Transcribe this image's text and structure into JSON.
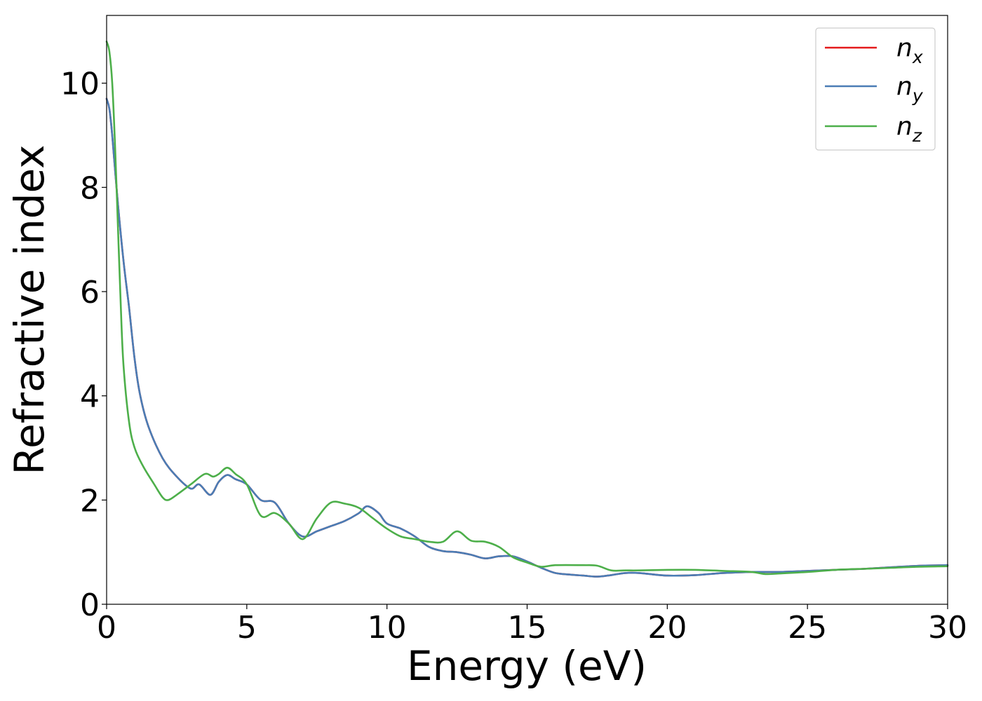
{
  "chart_data": {
    "type": "line",
    "xlabel": "Energy (eV)",
    "ylabel": "Refractive index",
    "xlim": [
      0,
      30
    ],
    "ylim": [
      0,
      11.3
    ],
    "xticks": [
      0,
      5,
      10,
      15,
      20,
      25,
      30
    ],
    "xtick_labels": [
      "0",
      "5",
      "10",
      "15",
      "20",
      "25",
      "30"
    ],
    "yticks": [
      0,
      2,
      4,
      6,
      8,
      10
    ],
    "ytick_labels": [
      "0",
      "2",
      "4",
      "6",
      "8",
      "10"
    ],
    "grid": false,
    "legend_position": "top-right",
    "series": [
      {
        "name": "n_x",
        "label_main": "n",
        "label_sub": "x",
        "color": "#e41a1c",
        "x": [
          0,
          0.1,
          0.2,
          0.4,
          0.6,
          0.8,
          1.0,
          1.2,
          1.5,
          2.0,
          2.5,
          3.0,
          3.3,
          3.7,
          4.0,
          4.3,
          4.6,
          5.0,
          5.5,
          6.0,
          6.5,
          7.0,
          7.5,
          8.0,
          8.5,
          9.0,
          9.3,
          9.7,
          10.0,
          10.5,
          11.0,
          11.5,
          12.0,
          12.5,
          13.0,
          13.5,
          14.0,
          14.5,
          15.0,
          15.5,
          16.0,
          16.5,
          17.0,
          17.5,
          18.0,
          18.5,
          19.0,
          20.0,
          21.0,
          22.0,
          23.0,
          24.0,
          25.0,
          26.0,
          27.0,
          28.0,
          29.0,
          30.0
        ],
        "y": [
          9.7,
          9.5,
          9.0,
          7.7,
          6.6,
          5.7,
          4.7,
          4.0,
          3.4,
          2.8,
          2.45,
          2.22,
          2.3,
          2.1,
          2.35,
          2.48,
          2.4,
          2.3,
          2.0,
          1.95,
          1.55,
          1.3,
          1.4,
          1.5,
          1.6,
          1.75,
          1.88,
          1.75,
          1.55,
          1.45,
          1.3,
          1.1,
          1.02,
          1.0,
          0.95,
          0.88,
          0.92,
          0.92,
          0.82,
          0.7,
          0.6,
          0.57,
          0.55,
          0.53,
          0.56,
          0.6,
          0.6,
          0.55,
          0.56,
          0.6,
          0.62,
          0.62,
          0.64,
          0.66,
          0.68,
          0.71,
          0.74,
          0.75
        ]
      },
      {
        "name": "n_y",
        "label_main": "n",
        "label_sub": "y",
        "color": "#4a7db5",
        "x": [
          0,
          0.1,
          0.2,
          0.4,
          0.6,
          0.8,
          1.0,
          1.2,
          1.5,
          2.0,
          2.5,
          3.0,
          3.3,
          3.7,
          4.0,
          4.3,
          4.6,
          5.0,
          5.5,
          6.0,
          6.5,
          7.0,
          7.5,
          8.0,
          8.5,
          9.0,
          9.3,
          9.7,
          10.0,
          10.5,
          11.0,
          11.5,
          12.0,
          12.5,
          13.0,
          13.5,
          14.0,
          14.5,
          15.0,
          15.5,
          16.0,
          16.5,
          17.0,
          17.5,
          18.0,
          18.5,
          19.0,
          20.0,
          21.0,
          22.0,
          23.0,
          24.0,
          25.0,
          26.0,
          27.0,
          28.0,
          29.0,
          30.0
        ],
        "y": [
          9.7,
          9.5,
          9.0,
          7.7,
          6.6,
          5.7,
          4.7,
          4.0,
          3.4,
          2.8,
          2.45,
          2.22,
          2.3,
          2.1,
          2.35,
          2.48,
          2.4,
          2.3,
          2.0,
          1.95,
          1.55,
          1.3,
          1.4,
          1.5,
          1.6,
          1.75,
          1.88,
          1.75,
          1.55,
          1.45,
          1.3,
          1.1,
          1.02,
          1.0,
          0.95,
          0.88,
          0.92,
          0.92,
          0.82,
          0.7,
          0.6,
          0.57,
          0.55,
          0.53,
          0.56,
          0.6,
          0.6,
          0.55,
          0.56,
          0.6,
          0.62,
          0.62,
          0.64,
          0.66,
          0.68,
          0.71,
          0.74,
          0.75
        ]
      },
      {
        "name": "n_z",
        "label_main": "n",
        "label_sub": "z",
        "color": "#4daf4a",
        "x": [
          0,
          0.1,
          0.2,
          0.3,
          0.4,
          0.5,
          0.6,
          0.8,
          1.0,
          1.3,
          1.7,
          2.0,
          2.2,
          2.5,
          3.0,
          3.5,
          3.8,
          4.0,
          4.3,
          4.6,
          5.0,
          5.5,
          6.0,
          6.5,
          7.0,
          7.5,
          8.0,
          8.5,
          9.0,
          9.5,
          10.0,
          10.5,
          11.0,
          11.5,
          12.0,
          12.5,
          13.0,
          13.5,
          14.0,
          14.5,
          15.0,
          15.5,
          16.0,
          17.0,
          17.5,
          18.0,
          18.5,
          19.0,
          20.0,
          21.0,
          22.0,
          23.0,
          23.5,
          24.0,
          25.0,
          26.0,
          27.0,
          28.0,
          29.0,
          30.0
        ],
        "y": [
          10.8,
          10.6,
          10.0,
          8.8,
          7.3,
          5.8,
          4.6,
          3.5,
          3.0,
          2.65,
          2.3,
          2.05,
          2.0,
          2.1,
          2.3,
          2.5,
          2.45,
          2.5,
          2.62,
          2.5,
          2.3,
          1.7,
          1.75,
          1.55,
          1.25,
          1.65,
          1.95,
          1.93,
          1.85,
          1.65,
          1.45,
          1.3,
          1.25,
          1.2,
          1.2,
          1.4,
          1.22,
          1.2,
          1.1,
          0.9,
          0.8,
          0.72,
          0.75,
          0.75,
          0.74,
          0.65,
          0.65,
          0.65,
          0.66,
          0.66,
          0.64,
          0.62,
          0.58,
          0.59,
          0.62,
          0.66,
          0.68,
          0.7,
          0.72,
          0.73
        ]
      }
    ]
  }
}
